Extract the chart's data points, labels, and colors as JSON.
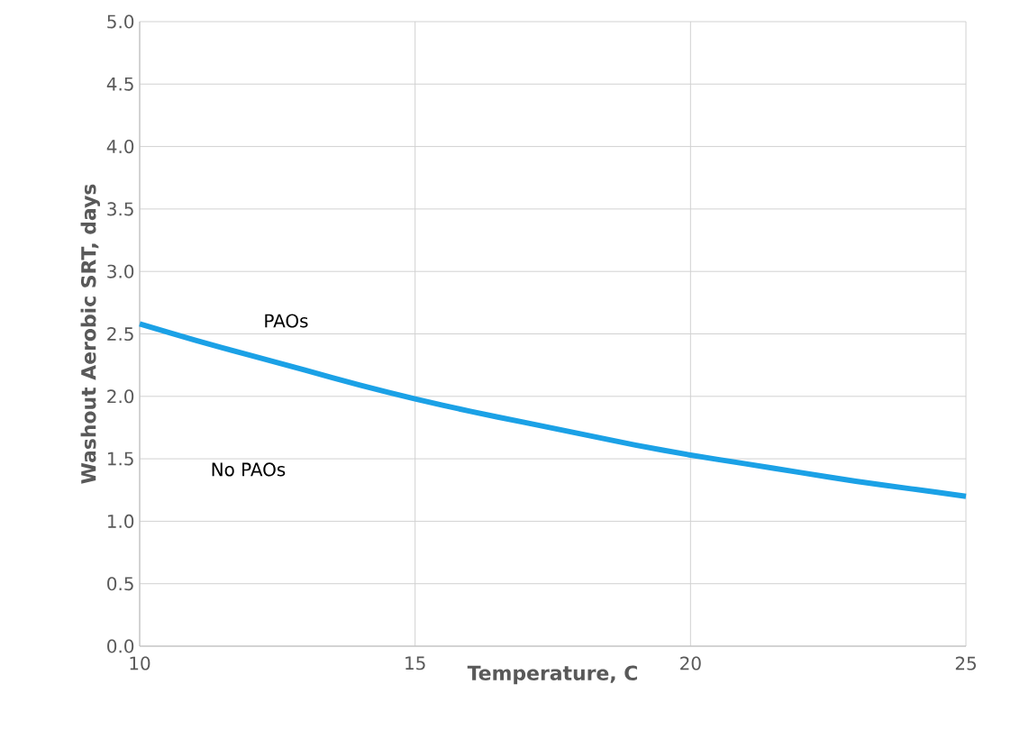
{
  "chart_data": {
    "type": "line",
    "xlabel": "Temperature, C",
    "ylabel": "Washout Aerobic SRT, days",
    "x": [
      10,
      11,
      12,
      13,
      14,
      15,
      16,
      17,
      18,
      19,
      20,
      21,
      22,
      23,
      24,
      25
    ],
    "series": [
      {
        "color": "#1ba1e6",
        "values": [
          2.58,
          2.45,
          2.33,
          2.21,
          2.09,
          1.98,
          1.88,
          1.79,
          1.7,
          1.61,
          1.53,
          1.46,
          1.39,
          1.32,
          1.26,
          1.2
        ]
      }
    ],
    "xlim": [
      10,
      25
    ],
    "xticks": [
      10,
      15,
      20,
      25
    ],
    "ylim": [
      0,
      5
    ],
    "yticks": [
      {
        "value": 0,
        "label": "0.0"
      },
      {
        "value": 0.5,
        "label": "0.5"
      },
      {
        "value": 1,
        "label": "1.0"
      },
      {
        "value": 1.5,
        "label": "1.5"
      },
      {
        "value": 2,
        "label": "2.0"
      },
      {
        "value": 2.5,
        "label": "2.5"
      },
      {
        "value": 3,
        "label": "3.0"
      },
      {
        "value": 3.5,
        "label": "3.5"
      },
      {
        "value": 4,
        "label": "4.0"
      },
      {
        "value": 4.5,
        "label": "4.5"
      },
      {
        "value": 5,
        "label": "5.0"
      }
    ],
    "grid": true,
    "marker": "none",
    "line_style": "solid",
    "annotations": [
      "PAOs",
      "No PAOs"
    ]
  }
}
